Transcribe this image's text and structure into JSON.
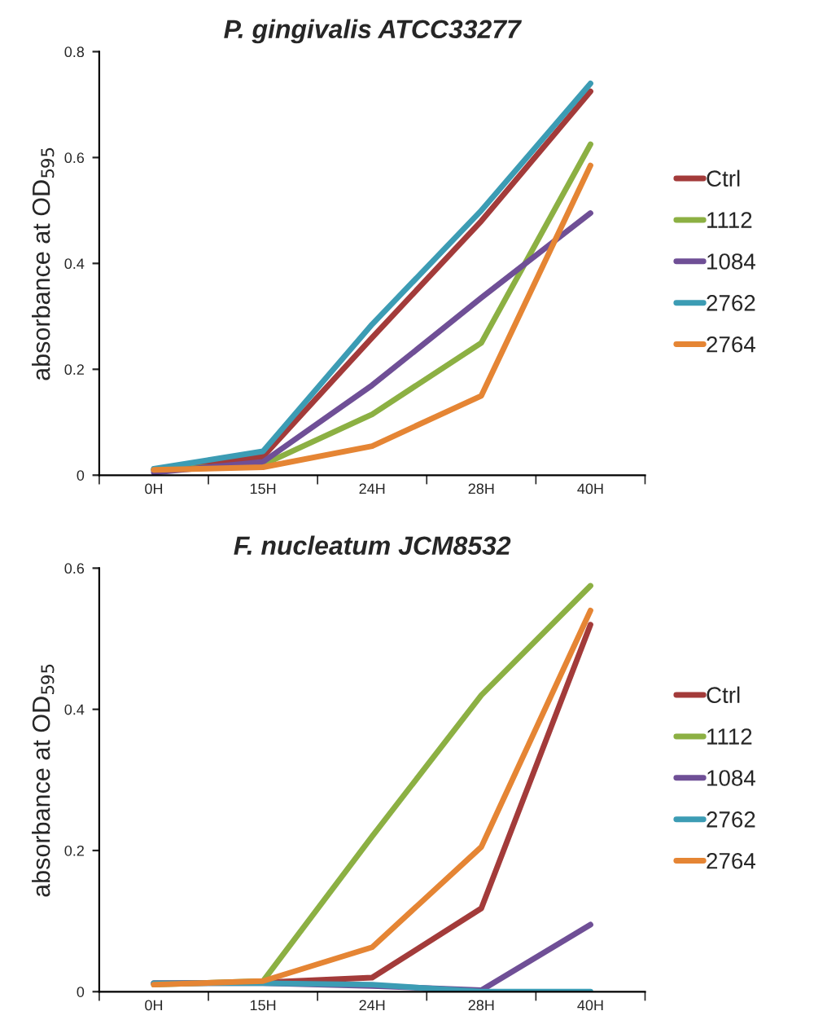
{
  "chart_data": [
    {
      "type": "line",
      "title": "P. gingivalis ATCC33277",
      "ylabel": "absorbance at OD$_{595}$",
      "categories": [
        "0H",
        "15H",
        "24H",
        "28H",
        "40H"
      ],
      "ylim": [
        0,
        0.8
      ],
      "yticks": [
        0,
        0.2,
        0.4,
        0.6,
        0.8
      ],
      "grid": false,
      "legend": "right",
      "marker": "none",
      "line_style": "solid",
      "series": [
        {
          "name": "Ctrl",
          "color": "#a33b3a",
          "values": [
            0.01,
            0.035,
            0.26,
            0.48,
            0.725
          ]
        },
        {
          "name": "1112",
          "color": "#8cb043",
          "values": [
            0.01,
            0.02,
            0.115,
            0.25,
            0.625
          ]
        },
        {
          "name": "1084",
          "color": "#6f4f96",
          "values": [
            0.005,
            0.025,
            0.17,
            0.335,
            0.495
          ]
        },
        {
          "name": "2762",
          "color": "#3c9cb4",
          "values": [
            0.012,
            0.045,
            0.285,
            0.5,
            0.74
          ]
        },
        {
          "name": "2764",
          "color": "#e58534",
          "values": [
            0.01,
            0.015,
            0.055,
            0.15,
            0.585
          ]
        }
      ]
    },
    {
      "type": "line",
      "title": "F. nucleatum JCM8532",
      "ylabel": "absorbance at OD$_{595}$",
      "categories": [
        "0H",
        "15H",
        "24H",
        "28H",
        "40H"
      ],
      "ylim": [
        0,
        0.6
      ],
      "yticks": [
        0,
        0.2,
        0.4,
        0.6
      ],
      "grid": false,
      "legend": "right",
      "marker": "none",
      "line_style": "solid",
      "series": [
        {
          "name": "Ctrl",
          "color": "#a33b3a",
          "values": [
            0.012,
            0.013,
            0.02,
            0.118,
            0.52
          ]
        },
        {
          "name": "1112",
          "color": "#8cb043",
          "values": [
            0.01,
            0.015,
            0.22,
            0.42,
            0.575
          ]
        },
        {
          "name": "1084",
          "color": "#6f4f96",
          "values": [
            0.012,
            0.012,
            0.008,
            0.002,
            0.095
          ]
        },
        {
          "name": "2762",
          "color": "#3c9cb4",
          "values": [
            0.012,
            0.012,
            0.01,
            0.0,
            0.0
          ]
        },
        {
          "name": "2764",
          "color": "#e58534",
          "values": [
            0.01,
            0.015,
            0.063,
            0.205,
            0.54
          ]
        }
      ]
    }
  ]
}
